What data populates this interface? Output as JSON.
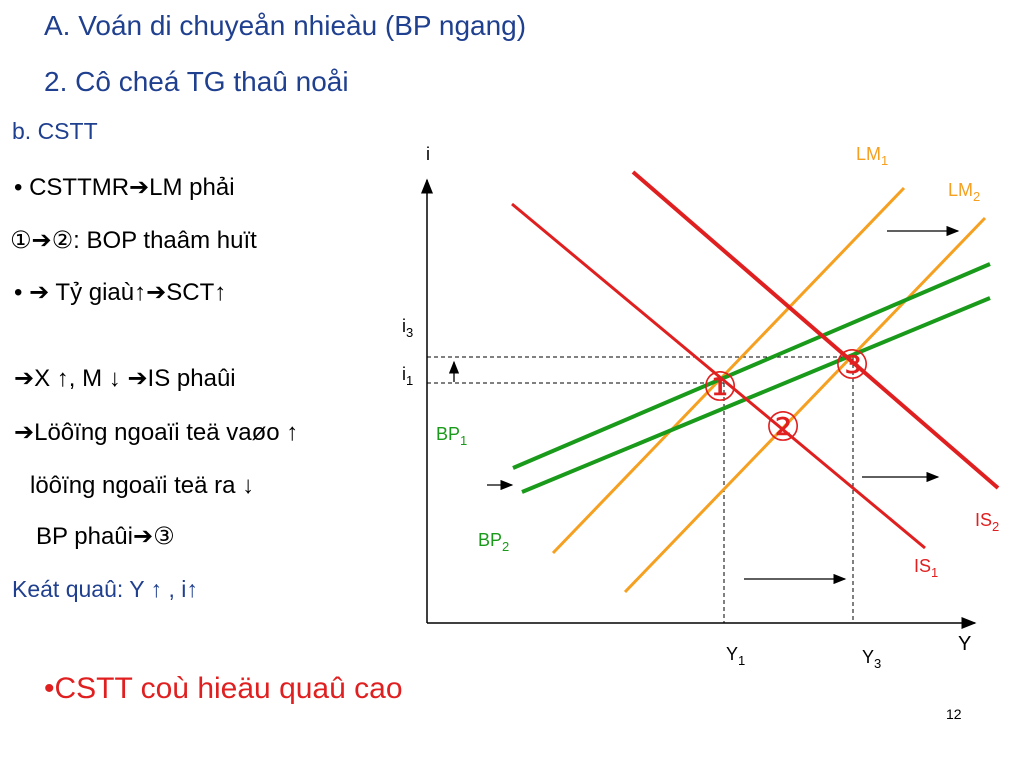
{
  "title_line1": "A. Voán di chuyeån nhieàu (BP ngang)",
  "title_line2": "2. Cô cheá TG thaû noåi",
  "subtitle": "b. CSTT",
  "bullets": {
    "line1": "•   CSTTMR➔LM phải",
    "line2": "①➔②: BOP   thaâm huït",
    "line3": "•    ➔ Tỷ giaù↑➔SCT↑",
    "line4": "➔X ↑, M ↓ ➔IS phaûi",
    "line5": "➔Löôïng ngoaïi teä vaøo ↑",
    "line6": "löôïng   ngoaïi teä ra ↓",
    "line7": "BP phaûi➔③"
  },
  "result": "Keát quaû: Y ↑ , i↑",
  "conclusion": "•CSTT coù hieäu quaû cao",
  "page_number": "12",
  "diagram": {
    "axis_y": "i",
    "axis_x": "Y",
    "i3": "i3",
    "i1": "i1",
    "y1": "Y1",
    "y3": "Y3",
    "lm1": "LM1",
    "lm2": "LM2",
    "is1": "IS1",
    "is2": "IS2",
    "bp1": "BP1",
    "bp2": "BP2",
    "point1": "①",
    "point2": "②",
    "point3": "③"
  },
  "colors": {
    "title": "#1f3f8f",
    "lm": "#f5a020",
    "is": "#e02020",
    "bp": "#1a9a1a",
    "conclusion": "#e02020"
  }
}
